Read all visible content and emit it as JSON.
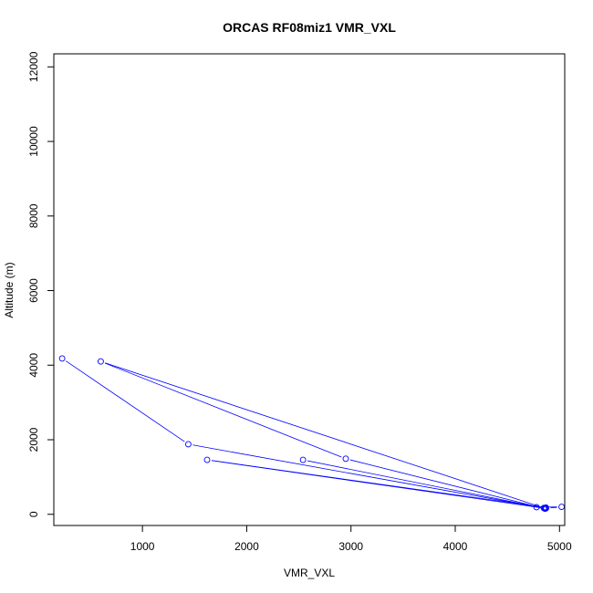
{
  "chart_data": {
    "type": "line",
    "title": "ORCAS RF08miz1 VMR_VXL",
    "xlabel": "VMR_VXL",
    "ylabel": "Altitude (m)",
    "xlim": [
      150,
      5050
    ],
    "ylim": [
      -300,
      12350
    ],
    "xticks": [
      1000,
      2000,
      3000,
      4000,
      5000
    ],
    "yticks": [
      0,
      2000,
      4000,
      6000,
      8000,
      10000,
      12000
    ],
    "grid": false,
    "series": [
      {
        "color": "#0000ff",
        "marker": "open-circle",
        "x": [
          230,
          1440,
          4860,
          4780,
          5020,
          4870,
          4850,
          4860,
          2950,
          600,
          4850,
          4870,
          1620,
          4860,
          2540
        ],
        "y": [
          4180,
          1880,
          160,
          190,
          200,
          160,
          170,
          150,
          1490,
          4100,
          170,
          180,
          1460,
          160,
          1460
        ]
      }
    ]
  }
}
